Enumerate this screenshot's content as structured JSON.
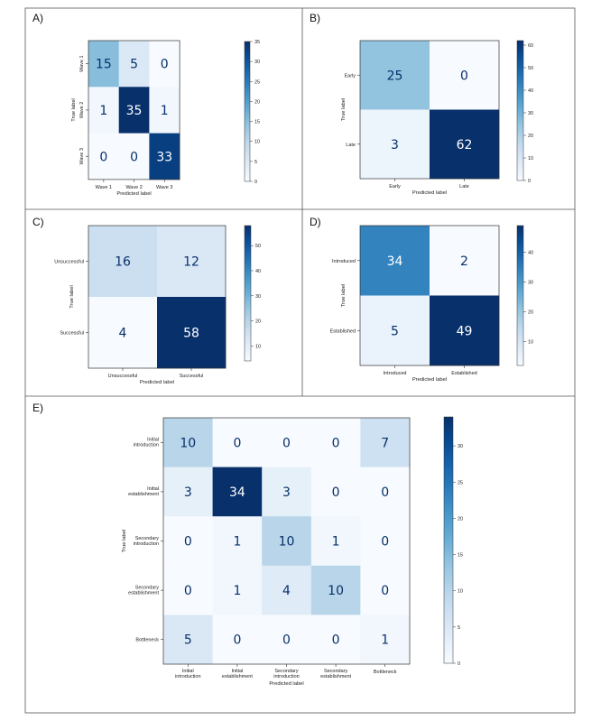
{
  "figure": {
    "panel_labels": [
      "A)",
      "B)",
      "C)",
      "D)",
      "E)"
    ]
  },
  "chart_data": [
    {
      "type": "heatmap",
      "panel": "A)",
      "title": "",
      "xlabel": "Predicted label",
      "ylabel": "True label",
      "x_categories": [
        "Wave 1",
        "Wave 2",
        "Wave 3"
      ],
      "y_categories": [
        "Wave 1",
        "Wave 2",
        "Wave 3"
      ],
      "y_labels_rotated": true,
      "values": [
        [
          15,
          5,
          0
        ],
        [
          1,
          35,
          1
        ],
        [
          0,
          0,
          33
        ]
      ],
      "colorbar": {
        "min": 0,
        "max": 35,
        "ticks": [
          0,
          5,
          10,
          15,
          20,
          25,
          30,
          35
        ]
      }
    },
    {
      "type": "heatmap",
      "panel": "B)",
      "title": "",
      "xlabel": "Predicted label",
      "ylabel": "True label",
      "x_categories": [
        "Early",
        "Late"
      ],
      "y_categories": [
        "Early",
        "Late"
      ],
      "y_labels_rotated": false,
      "values": [
        [
          25,
          0
        ],
        [
          3,
          62
        ]
      ],
      "colorbar": {
        "min": 0,
        "max": 62,
        "ticks": [
          0,
          10,
          20,
          30,
          40,
          50,
          60
        ]
      }
    },
    {
      "type": "heatmap",
      "panel": "C)",
      "title": "",
      "xlabel": "Predicted label",
      "ylabel": "True label",
      "x_categories": [
        "Unsuccessful",
        "Successful"
      ],
      "y_categories": [
        "Unsuccessful",
        "Successful"
      ],
      "y_labels_rotated": false,
      "values": [
        [
          16,
          12
        ],
        [
          4,
          58
        ]
      ],
      "colorbar": {
        "min": 4,
        "max": 58,
        "ticks": [
          10,
          20,
          30,
          40,
          50
        ]
      }
    },
    {
      "type": "heatmap",
      "panel": "D)",
      "title": "",
      "xlabel": "Predicted label",
      "ylabel": "True label",
      "x_categories": [
        "Introduced",
        "Established"
      ],
      "y_categories": [
        "Introduced",
        "Established"
      ],
      "y_labels_rotated": false,
      "values": [
        [
          34,
          2
        ],
        [
          5,
          49
        ]
      ],
      "colorbar": {
        "min": 2,
        "max": 49,
        "ticks": [
          10,
          20,
          30,
          40
        ]
      }
    },
    {
      "type": "heatmap",
      "panel": "E)",
      "title": "",
      "xlabel": "Predicted label",
      "ylabel": "True label",
      "x_categories": [
        "Initial introduction",
        "Initial establishment",
        "Secondary introduction",
        "Secondary establishment",
        "Bottleneck"
      ],
      "y_categories": [
        "Initial introduction",
        "Initial establishment",
        "Secondary introduction",
        "Secondary establishment",
        "Bottleneck"
      ],
      "y_labels_rotated": false,
      "values": [
        [
          10,
          0,
          0,
          0,
          7
        ],
        [
          3,
          34,
          3,
          0,
          0
        ],
        [
          0,
          1,
          10,
          1,
          0
        ],
        [
          0,
          1,
          4,
          10,
          0
        ],
        [
          5,
          0,
          0,
          0,
          1
        ]
      ],
      "colorbar": {
        "min": 0,
        "max": 34,
        "ticks": [
          0,
          5,
          10,
          15,
          20,
          25,
          30
        ]
      }
    }
  ]
}
